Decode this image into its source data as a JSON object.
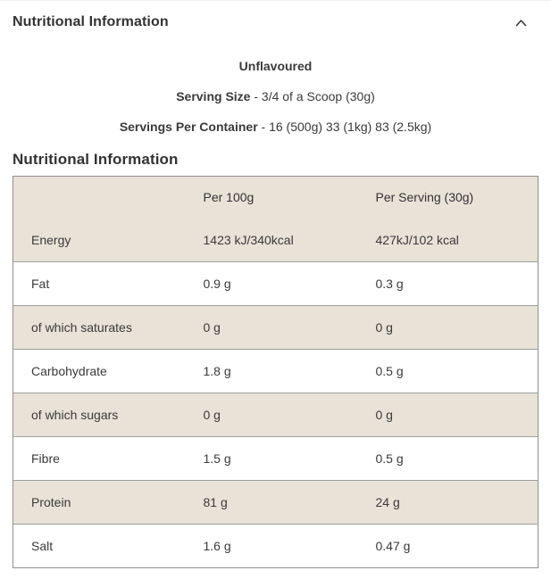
{
  "accordion": {
    "title": "Nutritional Information",
    "icon": "chevron-up-icon",
    "state": "expanded"
  },
  "intro": {
    "flavour": "Unflavoured",
    "serving_size_label": "Serving Size",
    "serving_size_value": "- 3/4 of a Scoop (30g)",
    "servings_label": "Servings Per Container",
    "servings_value": "- 16 (500g) 33 (1kg) 83 (2.5kg)"
  },
  "table": {
    "title": "Nutritional Information",
    "headers": {
      "label": "",
      "per_100g": "Per 100g",
      "per_serving": "Per Serving (30g)"
    },
    "rows": [
      {
        "label": "Energy",
        "per_100g": "1423 kJ/340kcal",
        "per_serving": "427kJ/102 kcal"
      },
      {
        "label": "Fat",
        "per_100g": "0.9 g",
        "per_serving": "0.3 g"
      },
      {
        "label": "of which saturates",
        "per_100g": "0 g",
        "per_serving": "0 g"
      },
      {
        "label": "Carbohydrate",
        "per_100g": "1.8 g",
        "per_serving": "0.5 g"
      },
      {
        "label": "of which sugars",
        "per_100g": "0 g",
        "per_serving": "0 g"
      },
      {
        "label": "Fibre",
        "per_100g": "1.5 g",
        "per_serving": "0.5 g"
      },
      {
        "label": "Protein",
        "per_100g": "81 g",
        "per_serving": "24 g"
      },
      {
        "label": "Salt",
        "per_100g": "1.6 g",
        "per_serving": "0.47 g"
      }
    ]
  },
  "colors": {
    "stripe_bg": "#e8e2d7",
    "table_border": "#8f8f8f",
    "row_divider": "#9e9e9e",
    "text": "#3a3a3a",
    "heading_text": "#333333"
  }
}
